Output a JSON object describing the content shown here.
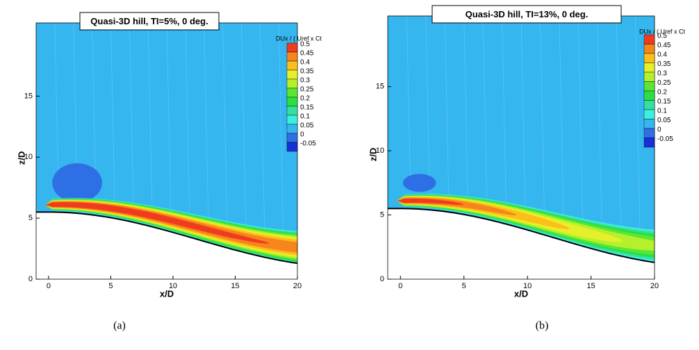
{
  "chart_data": [
    {
      "type": "contour",
      "title": "Quasi-3D hill, TI=5%, 0 deg.",
      "caption": "(a)",
      "xlabel": "x/D",
      "ylabel": "z/D",
      "xlim": [
        -1,
        20
      ],
      "ylim": [
        0,
        21
      ],
      "xticks": [
        0,
        5,
        10,
        15,
        20
      ],
      "yticks": [
        0,
        5,
        10,
        15
      ],
      "colorbar": {
        "title": "DUx / ( Uref x Ct",
        "levels": [
          0.5,
          0.45,
          0.4,
          0.35,
          0.3,
          0.25,
          0.2,
          0.15,
          0.1,
          0.05,
          0,
          -0.05
        ],
        "colors": [
          "#f03c1e",
          "#f7851d",
          "#fcbf1a",
          "#e6f02a",
          "#b4f02c",
          "#5be635",
          "#2ae040",
          "#34e0a0",
          "#3cf0e0",
          "#35b6ef",
          "#2f6fe6",
          "#1a2fd6"
        ]
      }
    },
    {
      "type": "contour",
      "title": "Quasi-3D hill, TI=13%, 0 deg.",
      "caption": "(b)",
      "xlabel": "x/D",
      "ylabel": "z/D",
      "xlim": [
        -1,
        20
      ],
      "ylim": [
        0,
        20.5
      ],
      "xticks": [
        0,
        5,
        10,
        15,
        20
      ],
      "yticks": [
        0,
        5,
        10,
        15
      ],
      "colorbar": {
        "title": "DUx / ( Uref x Ct",
        "levels": [
          0.5,
          0.45,
          0.4,
          0.35,
          0.3,
          0.25,
          0.2,
          0.15,
          0.1,
          0.05,
          0,
          -0.05
        ],
        "colors": [
          "#f03c1e",
          "#f7851d",
          "#fcbf1a",
          "#e6f02a",
          "#b4f02c",
          "#5be635",
          "#2ae040",
          "#34e0a0",
          "#3cf0e0",
          "#35b6ef",
          "#2f6fe6",
          "#1a2fd6"
        ]
      }
    }
  ]
}
